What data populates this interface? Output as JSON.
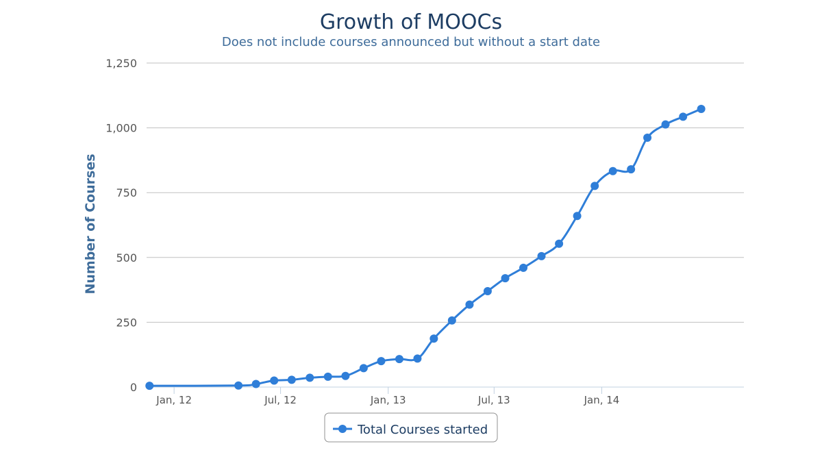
{
  "chart_data": {
    "type": "line",
    "title": "Growth of MOOCs",
    "subtitle": "Does not include courses announced but without a start date",
    "ylabel": "Number of Courses",
    "xlabel": "",
    "ylim": [
      0,
      1250
    ],
    "yticks": [
      0,
      250,
      500,
      750,
      1000,
      1250
    ],
    "ytick_labels": [
      "0",
      "250",
      "500",
      "750",
      "1,000",
      "1,250"
    ],
    "xlim": [
      "2011-11-15",
      "2014-09-01"
    ],
    "xticks": [
      "2012-01-01",
      "2012-07-01",
      "2013-01-01",
      "2013-07-01",
      "2014-01-01"
    ],
    "xtick_labels": [
      "Jan, 12",
      "Jul, 12",
      "Jan, 13",
      "Jul, 13",
      "Jan, 14"
    ],
    "grid": true,
    "legend": "bottom-center",
    "colors": {
      "series": "#2f7ed8",
      "grid": "#c0c0c0",
      "axis": "#c0d0e0"
    },
    "series": [
      {
        "name": "Total Courses started",
        "points": [
          {
            "x": "2011-11-20",
            "y": 5
          },
          {
            "x": "2012-04-20",
            "y": 6
          },
          {
            "x": "2012-05-20",
            "y": 12
          },
          {
            "x": "2012-06-20",
            "y": 25
          },
          {
            "x": "2012-07-20",
            "y": 28
          },
          {
            "x": "2012-08-20",
            "y": 36
          },
          {
            "x": "2012-09-20",
            "y": 40
          },
          {
            "x": "2012-10-20",
            "y": 43
          },
          {
            "x": "2012-11-20",
            "y": 73
          },
          {
            "x": "2012-12-20",
            "y": 100
          },
          {
            "x": "2013-01-20",
            "y": 108
          },
          {
            "x": "2013-02-20",
            "y": 110
          },
          {
            "x": "2013-03-20",
            "y": 187
          },
          {
            "x": "2013-04-20",
            "y": 257
          },
          {
            "x": "2013-05-20",
            "y": 318
          },
          {
            "x": "2013-06-20",
            "y": 370
          },
          {
            "x": "2013-07-20",
            "y": 420
          },
          {
            "x": "2013-08-20",
            "y": 460
          },
          {
            "x": "2013-09-20",
            "y": 505
          },
          {
            "x": "2013-10-20",
            "y": 553
          },
          {
            "x": "2013-11-20",
            "y": 660
          },
          {
            "x": "2013-12-20",
            "y": 776
          },
          {
            "x": "2014-01-20",
            "y": 833
          },
          {
            "x": "2014-02-20",
            "y": 840
          },
          {
            "x": "2014-03-20",
            "y": 962
          },
          {
            "x": "2014-04-20",
            "y": 1013
          },
          {
            "x": "2014-05-20",
            "y": 1043
          },
          {
            "x": "2014-06-20",
            "y": 1073
          }
        ]
      }
    ]
  }
}
